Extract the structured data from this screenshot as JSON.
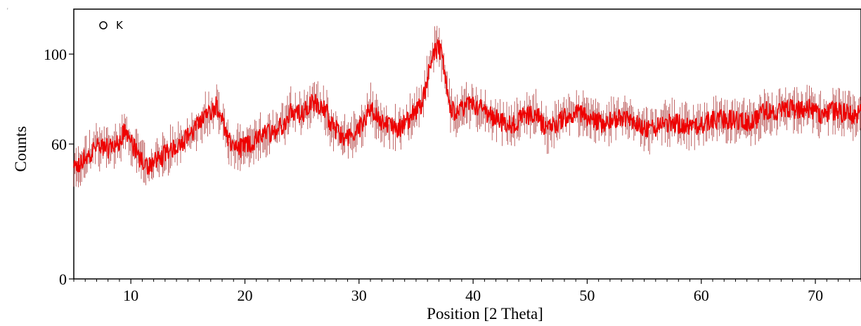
{
  "chart_data": {
    "type": "line",
    "title": "",
    "legend_label": "O K",
    "xlabel": "Position [2 Theta]",
    "ylabel": "Counts",
    "xlim": [
      5,
      74
    ],
    "ylim": [
      0,
      120
    ],
    "x_ticks": [
      10,
      20,
      30,
      40,
      50,
      60,
      70
    ],
    "y_ticks": [
      0,
      60,
      100
    ],
    "x_tick_labels": [
      "10",
      "20",
      "30",
      "40",
      "50",
      "60",
      "70"
    ],
    "y_tick_labels": [
      "0",
      "60",
      "100"
    ],
    "grid": false,
    "colors": {
      "line": "#ee0000",
      "noise": "#b04040",
      "axis": "#000000"
    },
    "series": [
      {
        "x": [
          5,
          6,
          7,
          8,
          9,
          9.5,
          10,
          10.8,
          11.5,
          12.5,
          13.5,
          14.5,
          15.5,
          16.5,
          17.5,
          18,
          18.5,
          19.5,
          20.5,
          21.5,
          22.5,
          23.5,
          24,
          25,
          26,
          27,
          27.5,
          28.5,
          29.5,
          30.5,
          31,
          31.5,
          32.5,
          33.5,
          34.5,
          35.5,
          36,
          36.5,
          37,
          37.5,
          38,
          38.5,
          39.5,
          40.5,
          41.5,
          42.5,
          43.5,
          44.5,
          45.5,
          46.5,
          47.5,
          48.5,
          49.5,
          50.5,
          51.5,
          52.5,
          53.5,
          54.5,
          55.5,
          56.5,
          57.5,
          58.5,
          59.5,
          60.5,
          61.5,
          62.5,
          63.5,
          64.5,
          65.5,
          66.5,
          67.5,
          68.5,
          69.5,
          70.5,
          71.5,
          72.5,
          73.5,
          74
        ],
        "y": [
          48,
          54,
          59,
          58,
          61,
          66,
          61,
          53,
          50,
          53,
          58,
          61,
          65,
          73,
          77,
          71,
          61,
          58,
          60,
          64,
          66,
          69,
          76,
          73,
          79,
          76,
          69,
          63,
          64,
          70,
          77,
          72,
          68,
          67,
          72,
          78,
          90,
          101,
          103,
          93,
          76,
          74,
          78,
          76,
          73,
          70,
          69,
          72,
          74,
          66,
          70,
          73,
          74,
          71,
          69,
          71,
          71,
          69,
          66,
          68,
          70,
          68,
          67,
          70,
          71,
          71,
          70,
          69,
          75,
          74,
          76,
          75,
          76,
          73,
          75,
          74,
          72,
          74
        ]
      }
    ]
  }
}
